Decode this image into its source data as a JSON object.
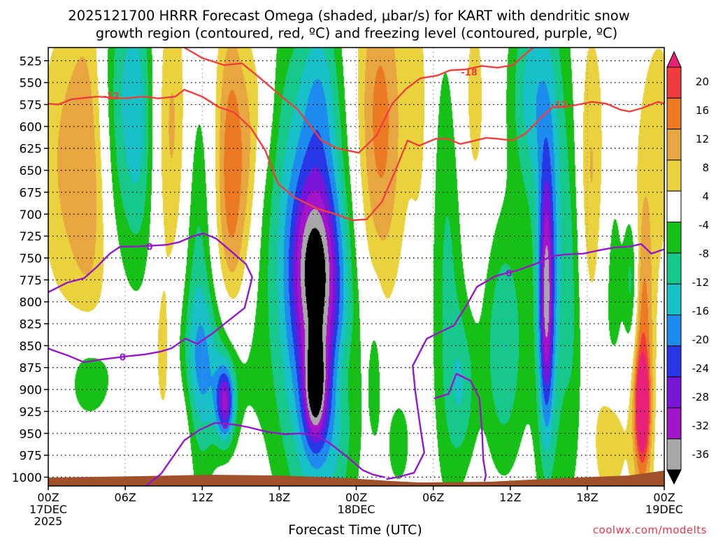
{
  "chart_data": {
    "type": "heatmap",
    "title_line1": "2025121700 HRRR Forecast Omega (shaded, μbar/s) for KART with dendritic snow",
    "title_line2": "growth region (contoured, red, ºC) and freezing level (contoured, purple, ºC)",
    "xlabel": "Forecast Time (UTC)",
    "credit": "coolwx.com/modelts",
    "x_range_hours": [
      0,
      48
    ],
    "y_range_hpa": [
      510,
      1010
    ],
    "x_ticks": [
      {
        "h": 0,
        "l1": "00Z",
        "l2": "17DEC",
        "l3": "2025"
      },
      {
        "h": 6,
        "l1": "06Z",
        "l2": "",
        "l3": ""
      },
      {
        "h": 12,
        "l1": "12Z",
        "l2": "",
        "l3": ""
      },
      {
        "h": 18,
        "l1": "18Z",
        "l2": "",
        "l3": ""
      },
      {
        "h": 24,
        "l1": "00Z",
        "l2": "18DEC",
        "l3": ""
      },
      {
        "h": 30,
        "l1": "06Z",
        "l2": "",
        "l3": ""
      },
      {
        "h": 36,
        "l1": "12Z",
        "l2": "",
        "l3": ""
      },
      {
        "h": 42,
        "l1": "18Z",
        "l2": "",
        "l3": ""
      },
      {
        "h": 48,
        "l1": "00Z",
        "l2": "19DEC",
        "l3": ""
      }
    ],
    "y_ticks": [
      "525",
      "550",
      "575",
      "600",
      "625",
      "650",
      "675",
      "700",
      "725",
      "750",
      "775",
      "800",
      "825",
      "850",
      "875",
      "900",
      "925",
      "950",
      "975",
      "1000"
    ],
    "colorbar": {
      "labels": [
        "20",
        "16",
        "12",
        "8",
        "4",
        "-4",
        "-8",
        "-12",
        "-16",
        "-20",
        "-24",
        "-28",
        "-32",
        "-36"
      ],
      "bins": [
        {
          "lo": 20,
          "hi": 24,
          "color": "#e8207a"
        },
        {
          "lo": 16,
          "hi": 20,
          "color": "#f03c3c"
        },
        {
          "lo": 12,
          "hi": 16,
          "color": "#ec7a22"
        },
        {
          "lo": 8,
          "hi": 12,
          "color": "#e8a640"
        },
        {
          "lo": 4,
          "hi": 8,
          "color": "#ead23e"
        },
        {
          "lo": -4,
          "hi": 4,
          "color": "#ffffff"
        },
        {
          "lo": -8,
          "hi": -4,
          "color": "#16c016"
        },
        {
          "lo": -12,
          "hi": -8,
          "color": "#16c88a"
        },
        {
          "lo": -16,
          "hi": -12,
          "color": "#18c0c8"
        },
        {
          "lo": -20,
          "hi": -16,
          "color": "#1e8cee"
        },
        {
          "lo": -24,
          "hi": -20,
          "color": "#2838e6"
        },
        {
          "lo": -28,
          "hi": -24,
          "color": "#7a14d8"
        },
        {
          "lo": -32,
          "hi": -28,
          "color": "#a414c8"
        },
        {
          "lo": -36,
          "hi": -32,
          "color": "#a8a8a8"
        },
        {
          "lo": -40,
          "hi": -36,
          "color": "#000000"
        }
      ]
    },
    "omega_cells": [
      {
        "h": 1.3,
        "p": 640,
        "sh": 1.6,
        "sp": 120,
        "v": 8
      },
      {
        "h": 3.6,
        "p": 620,
        "sh": 1.2,
        "sp": 160,
        "v": 13
      },
      {
        "h": 3.3,
        "p": 885,
        "sh": 1.4,
        "sp": 45,
        "v": -9
      },
      {
        "h": 5.3,
        "p": 575,
        "sh": 1.6,
        "sp": 130,
        "v": -14
      },
      {
        "h": 7.2,
        "p": 600,
        "sh": 0.8,
        "sp": 120,
        "v": -7
      },
      {
        "h": 8.9,
        "p": 860,
        "sh": 0.5,
        "sp": 60,
        "v": 6
      },
      {
        "h": 9.6,
        "p": 600,
        "sh": 0.9,
        "sp": 120,
        "v": 9
      },
      {
        "h": 10.5,
        "p": 940,
        "sh": 0.9,
        "sp": 50,
        "v": 5
      },
      {
        "h": 11.7,
        "p": 790,
        "sh": 0.8,
        "sp": 170,
        "v": -9
      },
      {
        "h": 12.7,
        "p": 880,
        "sh": 1.8,
        "sp": 65,
        "v": -12
      },
      {
        "h": 13.8,
        "p": 915,
        "sh": 0.5,
        "sp": 30,
        "v": -22
      },
      {
        "h": 14.3,
        "p": 650,
        "sh": 0.9,
        "sp": 130,
        "v": 16
      },
      {
        "h": 15.8,
        "p": 620,
        "sh": 0.6,
        "sp": 90,
        "v": 6
      },
      {
        "h": 16.9,
        "p": 560,
        "sh": 0.6,
        "sp": 70,
        "v": 5
      },
      {
        "h": 19.8,
        "p": 730,
        "sh": 2.4,
        "sp": 190,
        "v": -14
      },
      {
        "h": 20.8,
        "p": 760,
        "sh": 1.2,
        "sp": 70,
        "v": -18
      },
      {
        "h": 21.5,
        "p": 865,
        "sh": 1.8,
        "sp": 150,
        "v": -14
      },
      {
        "h": 20.8,
        "p": 900,
        "sh": 0.6,
        "sp": 40,
        "v": -22
      },
      {
        "h": 21.2,
        "p": 560,
        "sh": 1.0,
        "sp": 70,
        "v": -7
      },
      {
        "h": 23.0,
        "p": 880,
        "sh": 0.7,
        "sp": 40,
        "v": 4
      },
      {
        "h": 25.8,
        "p": 600,
        "sh": 1.4,
        "sp": 140,
        "v": 14
      },
      {
        "h": 25.5,
        "p": 880,
        "sh": 0.4,
        "sp": 60,
        "v": -6
      },
      {
        "h": 27.3,
        "p": 960,
        "sh": 0.7,
        "sp": 40,
        "v": -7
      },
      {
        "h": 29.0,
        "p": 580,
        "sh": 0.6,
        "sp": 120,
        "v": 5
      },
      {
        "h": 31.2,
        "p": 760,
        "sh": 1.0,
        "sp": 200,
        "v": -9
      },
      {
        "h": 32.3,
        "p": 900,
        "sh": 0.8,
        "sp": 60,
        "v": -8
      },
      {
        "h": 33.0,
        "p": 580,
        "sh": 1.0,
        "sp": 120,
        "v": 6
      },
      {
        "h": 35.5,
        "p": 850,
        "sh": 1.2,
        "sp": 100,
        "v": -12
      },
      {
        "h": 37.5,
        "p": 560,
        "sh": 1.2,
        "sp": 90,
        "v": -12
      },
      {
        "h": 39.2,
        "p": 740,
        "sh": 1.0,
        "sp": 200,
        "v": -14
      },
      {
        "h": 38.8,
        "p": 800,
        "sh": 0.4,
        "sp": 100,
        "v": -22
      },
      {
        "h": 41.0,
        "p": 760,
        "sh": 0.6,
        "sp": 180,
        "v": -7
      },
      {
        "h": 42.2,
        "p": 650,
        "sh": 0.9,
        "sp": 120,
        "v": 9
      },
      {
        "h": 43.8,
        "p": 960,
        "sh": 0.9,
        "sp": 50,
        "v": 9
      },
      {
        "h": 44.0,
        "p": 780,
        "sh": 0.7,
        "sp": 120,
        "v": -6
      },
      {
        "h": 45.5,
        "p": 780,
        "sh": 0.4,
        "sp": 60,
        "v": -12
      },
      {
        "h": 46.3,
        "p": 880,
        "sh": 0.6,
        "sp": 130,
        "v": 16
      },
      {
        "h": 46.3,
        "p": 920,
        "sh": 0.35,
        "sp": 35,
        "v": 22
      },
      {
        "h": 47.6,
        "p": 620,
        "sh": 1.2,
        "sp": 120,
        "v": 6
      }
    ],
    "series": [
      {
        "name": "dendritic snow growth region -12 °C",
        "color": "#ef4040",
        "points": [
          [
            0,
            574
          ],
          [
            0.8,
            575
          ],
          [
            1.8,
            569
          ],
          [
            3.8,
            566
          ],
          [
            6.0,
            568
          ],
          [
            7.4,
            566
          ],
          [
            8.6,
            568
          ],
          [
            9.9,
            566
          ],
          [
            10.6,
            558
          ],
          [
            12.0,
            566
          ],
          [
            13.3,
            578
          ],
          [
            14.5,
            584
          ],
          [
            15.8,
            602
          ],
          [
            16.9,
            627
          ],
          [
            17.9,
            665
          ],
          [
            19.2,
            681
          ],
          [
            21.0,
            694
          ],
          [
            22.4,
            700
          ],
          [
            23.7,
            707
          ],
          [
            24.8,
            706
          ],
          [
            26.0,
            686
          ],
          [
            27.0,
            652
          ],
          [
            28.0,
            616
          ],
          [
            28.9,
            622
          ],
          [
            30.2,
            614
          ],
          [
            31.1,
            614
          ],
          [
            32.1,
            620
          ],
          [
            33.0,
            617
          ],
          [
            34.1,
            613
          ],
          [
            35.0,
            614
          ],
          [
            36.2,
            616
          ],
          [
            37.2,
            608
          ],
          [
            38.4,
            590
          ],
          [
            39.3,
            578
          ],
          [
            40.6,
            577
          ],
          [
            42.4,
            572
          ],
          [
            43.5,
            574
          ],
          [
            44.6,
            581
          ],
          [
            45.3,
            583
          ],
          [
            46.3,
            579
          ],
          [
            47.5,
            572
          ],
          [
            48,
            574
          ]
        ],
        "labels": [
          {
            "h": 4.9,
            "p": 565,
            "t": "-12"
          },
          {
            "h": 39.8,
            "p": 575,
            "t": "-12"
          }
        ]
      },
      {
        "name": "dendritic snow growth region -18 °C",
        "color": "#ef4040",
        "points": [
          [
            10.6,
            510
          ],
          [
            12.0,
            522
          ],
          [
            13.7,
            530
          ],
          [
            15.1,
            528
          ],
          [
            16.6,
            546
          ],
          [
            18.2,
            566
          ],
          [
            19.4,
            580
          ],
          [
            21.3,
            616
          ],
          [
            22.5,
            625
          ],
          [
            24.2,
            630
          ],
          [
            25.6,
            610
          ],
          [
            26.8,
            574
          ],
          [
            27.9,
            557
          ],
          [
            29.0,
            545
          ],
          [
            30.3,
            542
          ],
          [
            31.3,
            536
          ],
          [
            32.5,
            535
          ],
          [
            33.8,
            531
          ],
          [
            35.0,
            533
          ],
          [
            36.2,
            530
          ],
          [
            37.3,
            516
          ],
          [
            37.8,
            510
          ]
        ],
        "labels": [
          {
            "h": 32.8,
            "p": 538,
            "t": "-18"
          }
        ]
      },
      {
        "name": "freezing level 0 °C (upper)",
        "color": "#9418c8",
        "points": [
          [
            0,
            789
          ],
          [
            1.5,
            778
          ],
          [
            2.8,
            773
          ],
          [
            3.8,
            760
          ],
          [
            4.8,
            745
          ],
          [
            5.6,
            737
          ],
          [
            6.8,
            737
          ],
          [
            8.0,
            736
          ],
          [
            9.2,
            735
          ],
          [
            10.2,
            732
          ],
          [
            11.3,
            725
          ],
          [
            12.1,
            722
          ],
          [
            13.1,
            728
          ],
          [
            14.3,
            743
          ],
          [
            15.4,
            757
          ],
          [
            15.9,
            772
          ],
          [
            15.3,
            807
          ],
          [
            14.0,
            822
          ],
          [
            12.8,
            836
          ],
          [
            11.6,
            848
          ],
          [
            10.7,
            842
          ],
          [
            9.6,
            853
          ],
          [
            8.7,
            857
          ],
          [
            7.5,
            860
          ],
          [
            6.2,
            862
          ],
          [
            5.1,
            864
          ],
          [
            4.0,
            866
          ],
          [
            2.8,
            869
          ],
          [
            1.5,
            861
          ],
          [
            0.3,
            855
          ],
          [
            0,
            853
          ]
        ],
        "labels": [
          {
            "h": 7.9,
            "p": 737,
            "t": "0"
          },
          {
            "h": 5.8,
            "p": 863,
            "t": "0"
          }
        ]
      },
      {
        "name": "freezing level 0 °C (lower)",
        "color": "#9418c8",
        "points": [
          [
            7.6,
            1010
          ],
          [
            8.8,
            996
          ],
          [
            9.8,
            975
          ],
          [
            10.6,
            958
          ],
          [
            11.8,
            946
          ],
          [
            13.0,
            938
          ],
          [
            14.5,
            940
          ],
          [
            15.6,
            943
          ],
          [
            17.0,
            948
          ],
          [
            18.4,
            951
          ],
          [
            19.6,
            950
          ],
          [
            20.9,
            952
          ],
          [
            22.0,
            962
          ],
          [
            23.4,
            978
          ],
          [
            24.5,
            992
          ],
          [
            25.3,
            997
          ],
          [
            26.2,
            1000
          ]
        ],
        "labels": [
          {
            "h": 13.8,
            "p": 941,
            "t": "0"
          }
        ]
      },
      {
        "name": "freezing level 0 °C (right)",
        "color": "#9418c8",
        "points": [
          [
            26.4,
            1002
          ],
          [
            27.2,
            1000
          ],
          [
            28.5,
            995
          ],
          [
            29.3,
            972
          ],
          [
            29.0,
            944
          ],
          [
            28.6,
            902
          ],
          [
            28.4,
            873
          ],
          [
            29.5,
            842
          ],
          [
            31.6,
            827
          ],
          [
            32.6,
            804
          ],
          [
            33.4,
            783
          ],
          [
            34.8,
            771
          ],
          [
            35.5,
            768
          ],
          [
            36.6,
            764
          ],
          [
            38.1,
            756
          ],
          [
            39.2,
            748
          ],
          [
            40.3,
            746
          ],
          [
            41.7,
            745
          ],
          [
            43.0,
            741
          ],
          [
            44.1,
            738
          ],
          [
            45.3,
            737
          ],
          [
            46.2,
            734
          ],
          [
            47.0,
            745
          ],
          [
            48,
            740
          ]
        ],
        "labels": [
          {
            "h": 35.9,
            "p": 767,
            "t": "0"
          }
        ]
      },
      {
        "name": "freezing level 0 °C (small loop)",
        "color": "#9418c8",
        "points": [
          [
            30.1,
            910
          ],
          [
            31.2,
            905
          ],
          [
            31.8,
            882
          ],
          [
            32.9,
            890
          ],
          [
            33.6,
            910
          ],
          [
            33.8,
            948
          ],
          [
            33.9,
            980
          ],
          [
            34.1,
            998
          ],
          [
            34.0,
            1004
          ]
        ],
        "labels": []
      }
    ]
  }
}
